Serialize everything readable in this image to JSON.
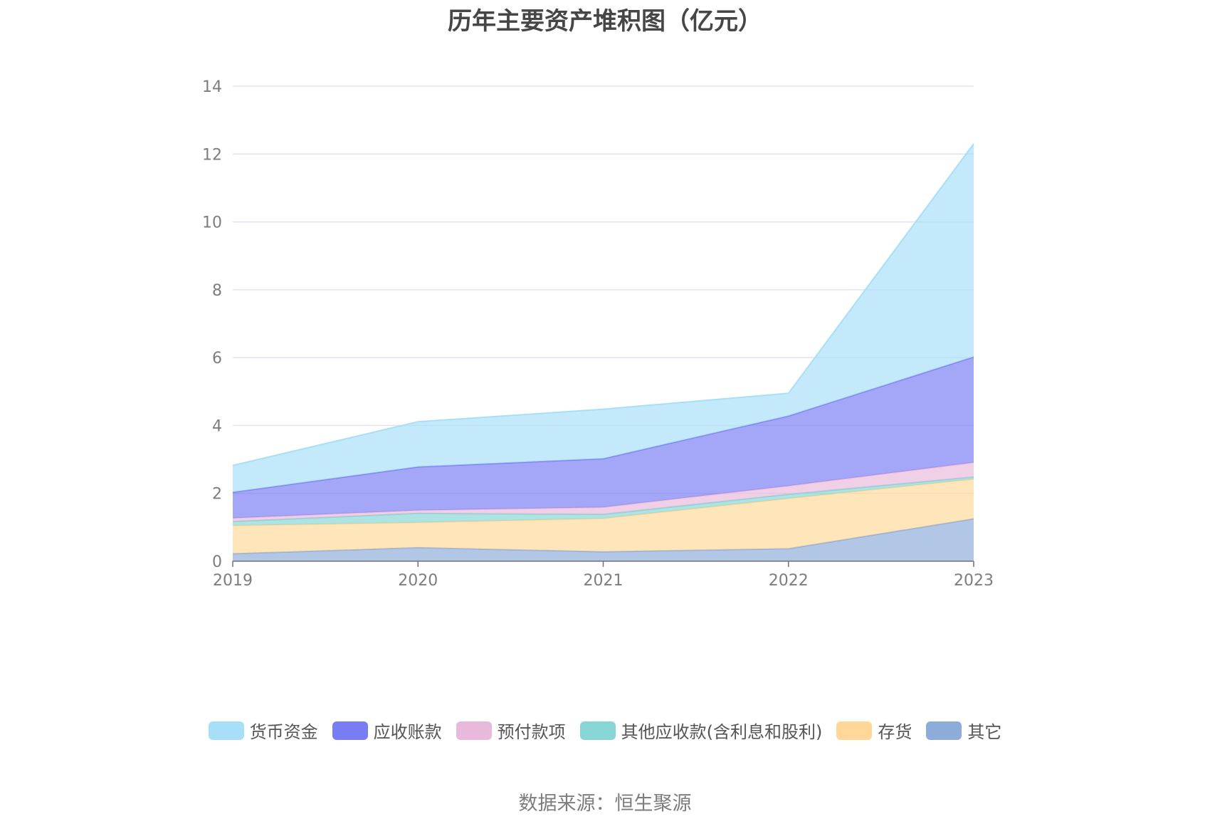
{
  "title": "历年主要资产堆积图（亿元）",
  "source": "数据来源：恒生聚源",
  "chart_data": {
    "type": "area",
    "stacked": true,
    "categories": [
      "2019",
      "2020",
      "2021",
      "2022",
      "2023"
    ],
    "ylim": [
      0,
      14
    ],
    "yticks": [
      "0",
      "2",
      "4",
      "6",
      "8",
      "10",
      "12",
      "14"
    ],
    "grid": true,
    "legend_position": "bottom",
    "series": [
      {
        "name": "其它",
        "color": "#8eacda",
        "values": [
          0.22,
          0.4,
          0.28,
          0.37,
          1.25
        ]
      },
      {
        "name": "存货",
        "color": "#ffd899",
        "values": [
          0.83,
          0.74,
          0.98,
          1.48,
          1.17
        ]
      },
      {
        "name": "其他应收款(含利息和股利)",
        "color": "#87d5d5",
        "values": [
          0.12,
          0.27,
          0.12,
          0.12,
          0.06
        ]
      },
      {
        "name": "预付款项",
        "color": "#e8b9da",
        "values": [
          0.1,
          0.09,
          0.21,
          0.25,
          0.43
        ]
      },
      {
        "name": "应收账款",
        "color": "#797df3",
        "values": [
          0.76,
          1.28,
          1.43,
          2.06,
          3.11
        ]
      },
      {
        "name": "货币资金",
        "color": "#a8dff8",
        "values": [
          0.79,
          1.33,
          1.46,
          0.67,
          6.28
        ]
      }
    ]
  }
}
